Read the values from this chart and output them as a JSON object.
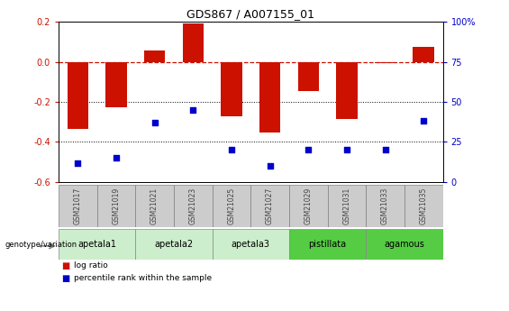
{
  "title": "GDS867 / A007155_01",
  "samples": [
    "GSM21017",
    "GSM21019",
    "GSM21021",
    "GSM21023",
    "GSM21025",
    "GSM21027",
    "GSM21029",
    "GSM21031",
    "GSM21033",
    "GSM21035"
  ],
  "log_ratio": [
    -0.335,
    -0.225,
    0.055,
    0.19,
    -0.27,
    -0.355,
    -0.145,
    -0.285,
    -0.005,
    0.075
  ],
  "percentile_rank": [
    12,
    15,
    37,
    45,
    20,
    10,
    20,
    20,
    20,
    38
  ],
  "ylim_left": [
    -0.6,
    0.2
  ],
  "ylim_right": [
    0,
    100
  ],
  "yticks_left": [
    -0.6,
    -0.4,
    -0.2,
    0.0,
    0.2
  ],
  "yticks_right": [
    0,
    25,
    50,
    75,
    100
  ],
  "bar_color": "#cc1100",
  "dot_color": "#0000cc",
  "zero_line_color": "#cc1100",
  "hline_color": "#000000",
  "groups": [
    {
      "label": "apetala1",
      "start": 0,
      "end": 2,
      "color": "#cceecc"
    },
    {
      "label": "apetala2",
      "start": 2,
      "end": 4,
      "color": "#cceecc"
    },
    {
      "label": "apetala3",
      "start": 4,
      "end": 6,
      "color": "#cceecc"
    },
    {
      "label": "pistillata",
      "start": 6,
      "end": 8,
      "color": "#55cc44"
    },
    {
      "label": "agamous",
      "start": 8,
      "end": 10,
      "color": "#55cc44"
    }
  ],
  "genotype_label": "genotype/variation",
  "legend_log_ratio": "log ratio",
  "legend_percentile": "percentile rank within the sample",
  "bg_color": "#ffffff",
  "gsm_box_color": "#cccccc",
  "gsm_text_color": "#444444"
}
